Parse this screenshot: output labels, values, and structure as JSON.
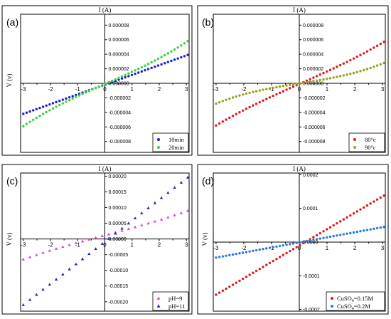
{
  "chart_data": [
    {
      "type": "scatter",
      "panel_label": "(a)",
      "xlabel": "I (A)",
      "ylabel": "V (v)",
      "xlim": [
        -3.1,
        3.1
      ],
      "ylim": [
        -9.5e-06,
        9.5e-06
      ],
      "xticks": [
        "-3",
        "-2",
        "-1",
        "0",
        "1",
        "2",
        "3"
      ],
      "yticks": [
        "0.000008",
        "0.000006",
        "0.000004",
        "0.000002",
        "0.000000",
        "-0.000002",
        "-0.000004",
        "-0.000006",
        "-0.000008"
      ],
      "ytick_values": [
        8e-06,
        6e-06,
        4e-06,
        2e-06,
        0,
        -2e-06,
        -4e-06,
        -6e-06,
        -8e-06
      ],
      "xtick_values": [
        -3,
        -2,
        -1,
        0,
        1,
        2,
        3
      ],
      "legend_position": "bottom-right",
      "grid": false,
      "series": [
        {
          "name": "10min",
          "color": "#1f1fcc",
          "marker": "circle",
          "x_start": -3.0,
          "x_end": 3.05,
          "n": 51,
          "y_start": -4.2e-06,
          "y_end": 3.9e-06,
          "curve": 0
        },
        {
          "name": "20min",
          "color": "#3ad43a",
          "marker": "circle",
          "x_start": -3.0,
          "x_end": 3.05,
          "n": 51,
          "y_start": -5.9e-06,
          "y_end": 5.8e-06,
          "curve": 0.15
        }
      ]
    },
    {
      "type": "scatter",
      "panel_label": "(b)",
      "xlabel": "I (A)",
      "ylabel": "",
      "xlim": [
        -3.1,
        3.1
      ],
      "ylim": [
        -9.5e-06,
        9.5e-06
      ],
      "xticks": [
        "-3",
        "-2",
        "-1",
        "0",
        "1",
        "2",
        "3"
      ],
      "yticks": [
        "0.000008",
        "0.000006",
        "0.000004",
        "0.000002",
        "0.000000",
        "-0.000002",
        "-0.000004",
        "-0.000006",
        "-0.000008"
      ],
      "ytick_values": [
        8e-06,
        6e-06,
        4e-06,
        2e-06,
        0,
        -2e-06,
        -4e-06,
        -6e-06,
        -8e-06
      ],
      "xtick_values": [
        -3,
        -2,
        -1,
        0,
        1,
        2,
        3
      ],
      "legend_position": "bottom-right",
      "grid": false,
      "series": [
        {
          "name": "80°c",
          "color": "#e01b1b",
          "marker": "circle",
          "x_start": -3.0,
          "x_end": 3.05,
          "n": 51,
          "y_start": -5.8e-06,
          "y_end": 5.7e-06,
          "curve": 0.1
        },
        {
          "name": "90°c",
          "color": "#9aa020",
          "marker": "circle",
          "x_start": -3.0,
          "x_end": 3.05,
          "n": 51,
          "y_start": -2.8e-06,
          "y_end": 2.8e-06,
          "curve": 0.35
        }
      ]
    },
    {
      "type": "scatter",
      "panel_label": "(c)",
      "xlabel": "I (A)",
      "ylabel": "V (v)",
      "xlim": [
        -3.1,
        3.1
      ],
      "ylim": [
        -0.00023,
        0.00021
      ],
      "xticks": [
        "-3",
        "-2",
        "-1",
        "0",
        "1",
        "2",
        "3"
      ],
      "yticks": [
        "0.00020",
        "0.00015",
        "0.00010",
        "0.00005",
        "0.00000",
        "-0.00005",
        "-0.00010",
        "-0.00015",
        "-0.00020"
      ],
      "ytick_values": [
        0.0002,
        0.00015,
        0.0001,
        5e-05,
        0,
        -5e-05,
        -0.0001,
        -0.00015,
        -0.0002
      ],
      "xtick_values": [
        -3,
        -2,
        -1,
        0,
        1,
        2,
        3
      ],
      "legend_position": "bottom-right",
      "grid": false,
      "series": [
        {
          "name": "pH=9",
          "color": "#e040e0",
          "marker": "triangle",
          "x_start": -3.0,
          "x_end": 3.05,
          "n": 26,
          "y_start": -6.5e-05,
          "y_end": 9e-05,
          "curve": 0.1
        },
        {
          "name": "pH=11",
          "color": "#1f1fcc",
          "marker": "triangle",
          "x_start": -3.0,
          "x_end": 3.05,
          "n": 26,
          "y_start": -0.00021,
          "y_end": 0.000196,
          "curve": 0
        }
      ]
    },
    {
      "type": "scatter",
      "panel_label": "(d)",
      "xlabel": "I (A)",
      "ylabel": "V (v)",
      "xlim": [
        -3.1,
        3.1
      ],
      "ylim": [
        -0.000205,
        0.000205
      ],
      "xticks": [
        "-3",
        "-2",
        "-1",
        "0",
        "1",
        "2",
        "3"
      ],
      "yticks": [
        "0.0002",
        "0.0001",
        "0.0000",
        "-0.0001",
        "-0.0002"
      ],
      "ytick_values": [
        0.0002,
        0.0001,
        0,
        -0.0001,
        -0.0002
      ],
      "xtick_values": [
        -3,
        -2,
        -1,
        0,
        1,
        2,
        3
      ],
      "legend_position": "bottom-right",
      "grid": false,
      "series": [
        {
          "name": "CuSO4=0.15M",
          "name_base": "CuSO",
          "name_sub": "4",
          "name_rest": "=0.15M",
          "color": "#e01b1b",
          "marker": "circle",
          "x_start": -3.0,
          "x_end": 3.05,
          "n": 51,
          "y_start": -0.000156,
          "y_end": 0.000138,
          "curve": 0
        },
        {
          "name": "CuSO4=0.2M",
          "name_base": "CuSO",
          "name_sub": "4",
          "name_rest": "=0.2M",
          "color": "#2a7ad8",
          "marker": "circle",
          "x_start": -3.0,
          "x_end": 3.05,
          "n": 51,
          "y_start": -4.6e-05,
          "y_end": 4.5e-05,
          "curve": 0
        }
      ]
    }
  ]
}
